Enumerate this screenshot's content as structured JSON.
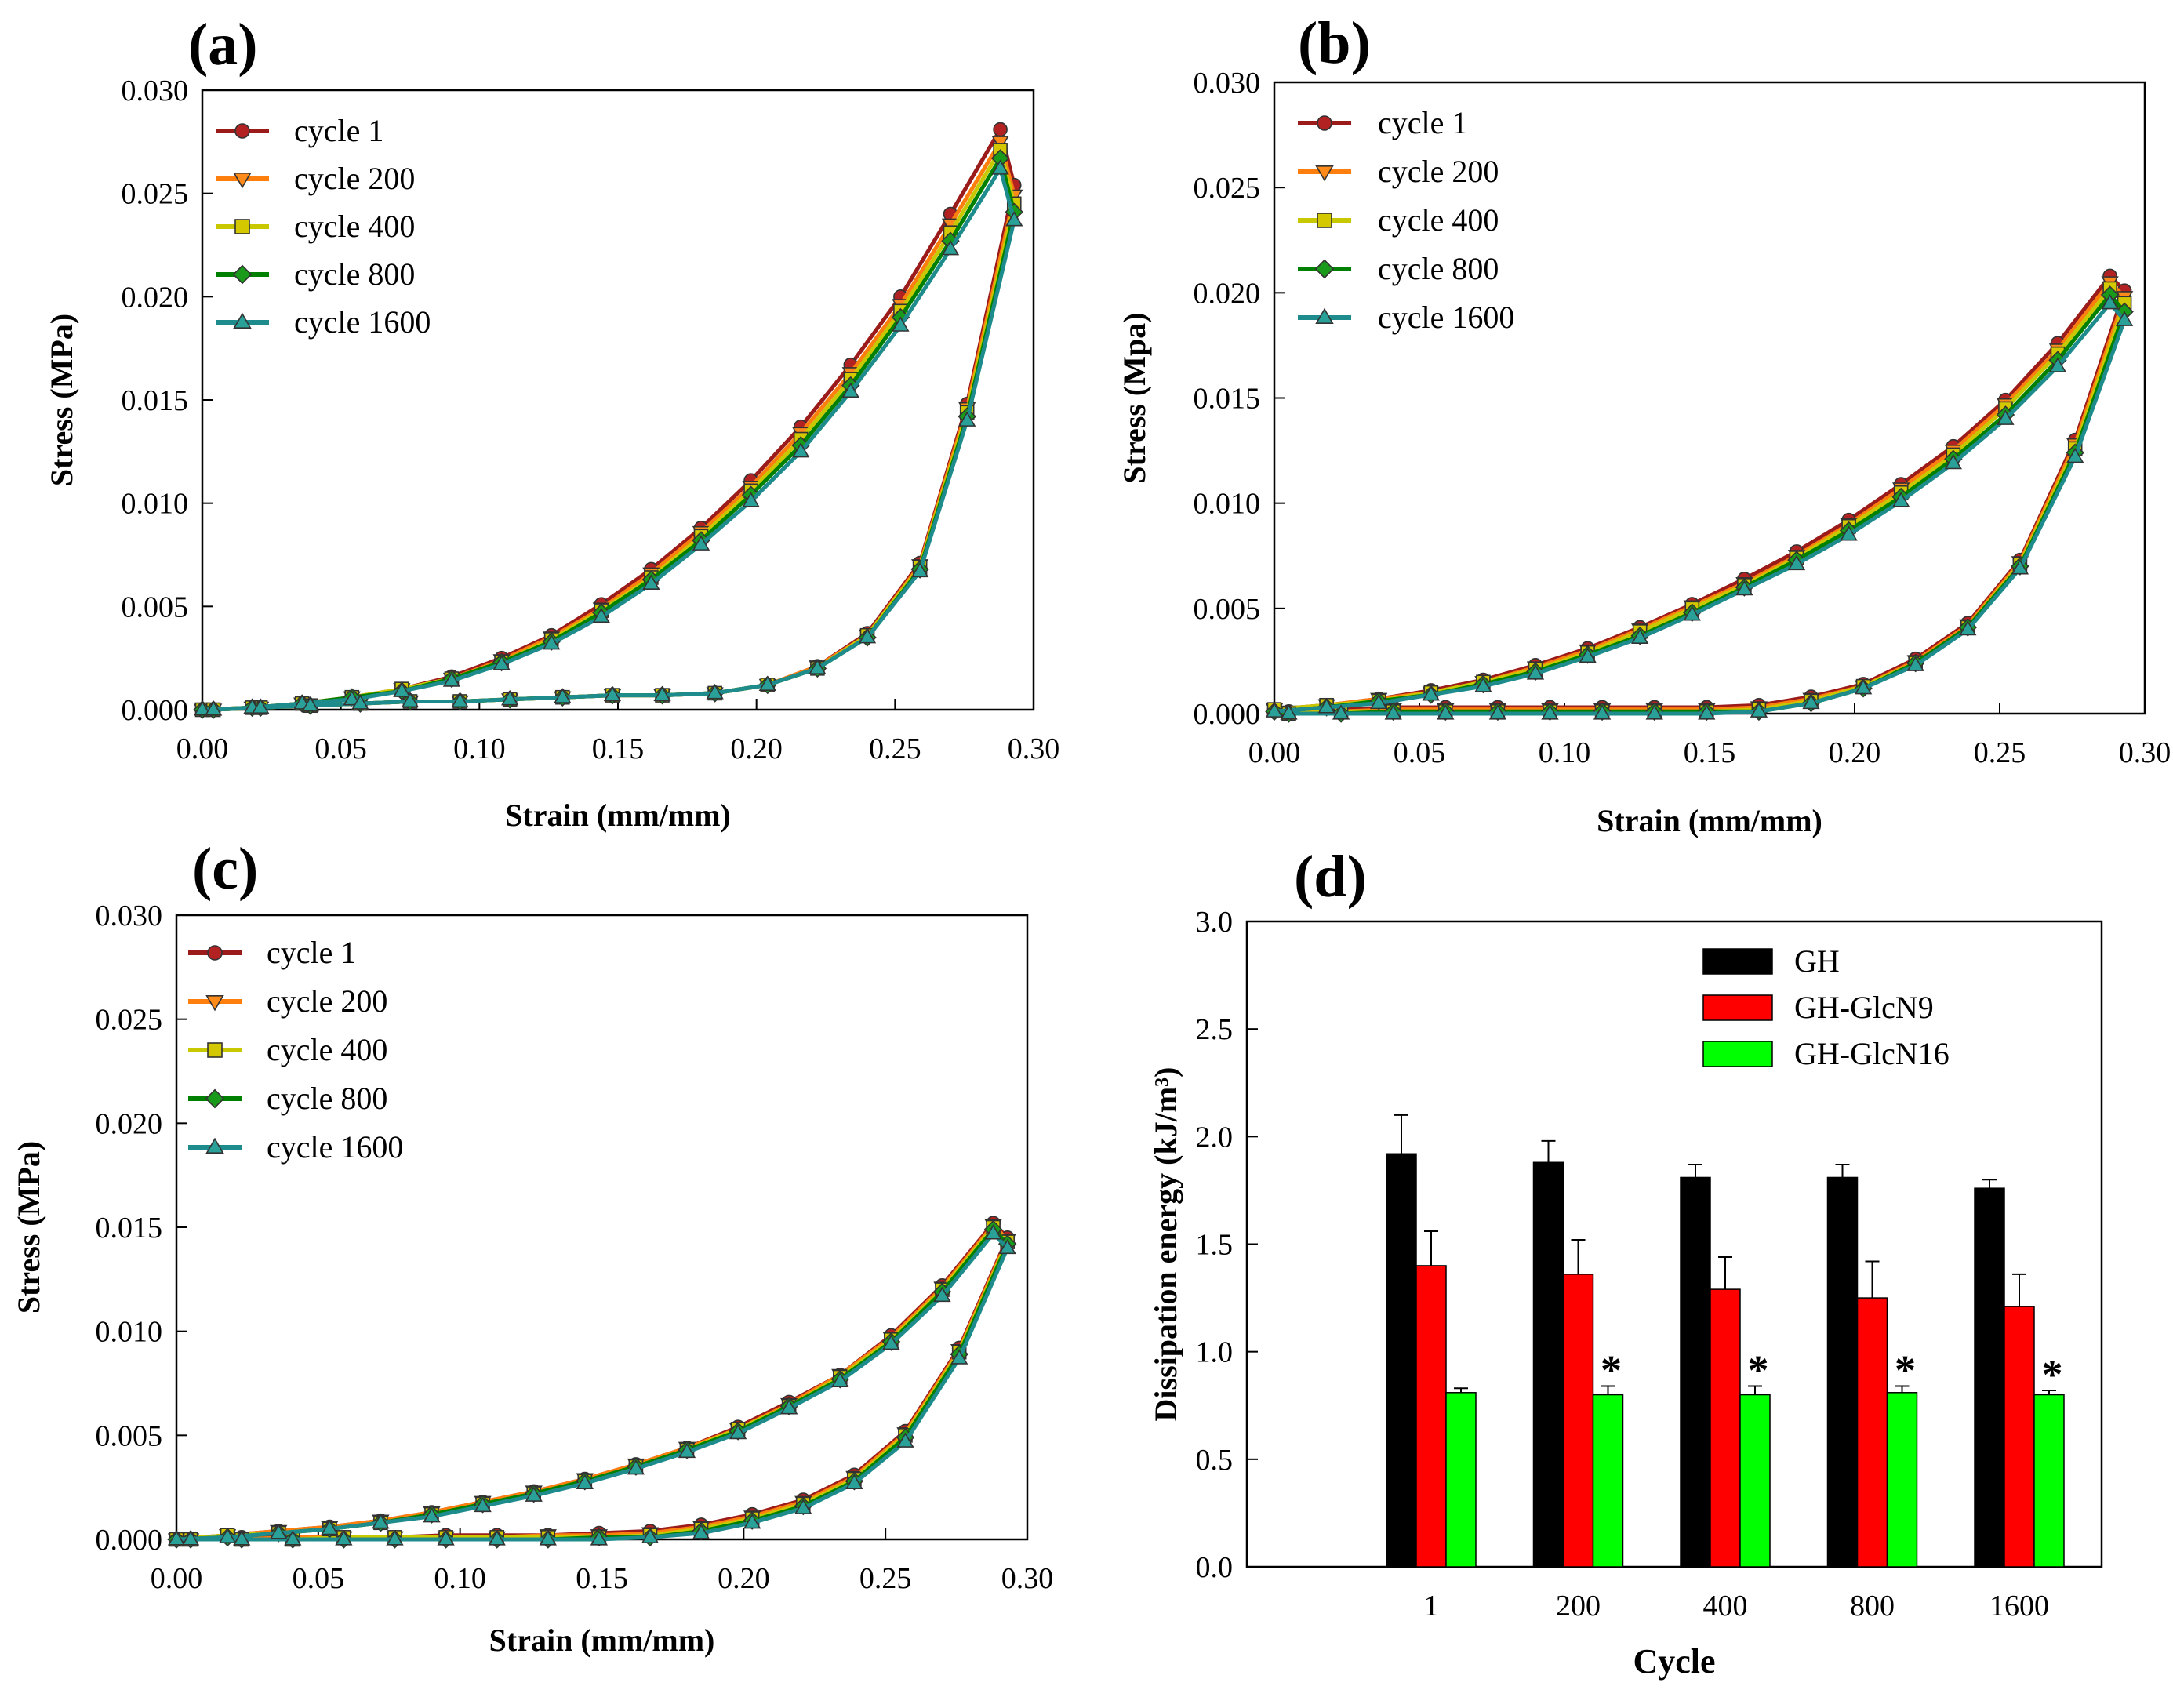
{
  "chart_data": [
    {
      "panel": "(a)",
      "type": "line",
      "xlabel": "Strain (mm/mm)",
      "ylabel": "Stress (MPa)",
      "xlim": [
        0.0,
        0.3
      ],
      "ylim": [
        0.0,
        0.03
      ],
      "xticks": [
        "0.00",
        "0.05",
        "0.10",
        "0.15",
        "0.20",
        "0.25",
        "0.30"
      ],
      "yticks": [
        "0.000",
        "0.005",
        "0.010",
        "0.015",
        "0.020",
        "0.025",
        "0.030"
      ],
      "xtick_values": [
        0,
        0.05,
        0.1,
        0.15,
        0.2,
        0.25,
        0.3
      ],
      "ytick_values": [
        0,
        0.005,
        0.01,
        0.015,
        0.02,
        0.025,
        0.03
      ],
      "loading_x": [
        0,
        0.018,
        0.036,
        0.054,
        0.072,
        0.09,
        0.108,
        0.126,
        0.144,
        0.162,
        0.18,
        0.198,
        0.216,
        0.234,
        0.252,
        0.27,
        0.288
      ],
      "unloading_x": [
        0.293,
        0.276,
        0.259,
        0.24,
        0.222,
        0.204,
        0.185,
        0.166,
        0.148,
        0.13,
        0.111,
        0.093,
        0.075,
        0.057,
        0.039,
        0.021,
        0.004
      ],
      "legend_position": "top-left",
      "series": [
        {
          "name": "cycle 1",
          "color": "#9b1b1b",
          "marker": "circle",
          "marker_fill": "#b22222",
          "loading": [
            0.0,
            0.0001,
            0.0003,
            0.0006,
            0.001,
            0.0016,
            0.0025,
            0.0036,
            0.0051,
            0.0068,
            0.0088,
            0.0111,
            0.0137,
            0.0167,
            0.02,
            0.024,
            0.0281
          ],
          "unloading": [
            0.0254,
            0.0148,
            0.0071,
            0.0037,
            0.0021,
            0.0012,
            0.0008,
            0.0007,
            0.0007,
            0.0006,
            0.0005,
            0.0004,
            0.0004,
            0.0003,
            0.0002,
            0.0001,
            0.0
          ]
        },
        {
          "name": "cycle 200",
          "color": "#ff7f0e",
          "marker": "triangle-down",
          "marker_fill": "#ff8c1a",
          "loading": [
            0.0,
            0.0001,
            0.0003,
            0.0006,
            0.001,
            0.0015,
            0.0024,
            0.0035,
            0.0049,
            0.0066,
            0.0086,
            0.0108,
            0.0134,
            0.0163,
            0.0196,
            0.0235,
            0.0275
          ],
          "unloading": [
            0.0249,
            0.0146,
            0.007,
            0.0036,
            0.0021,
            0.0012,
            0.0008,
            0.0007,
            0.0007,
            0.0006,
            0.0005,
            0.0004,
            0.0004,
            0.0003,
            0.0002,
            0.0001,
            0.0
          ]
        },
        {
          "name": "cycle 400",
          "color": "#c8c800",
          "marker": "square",
          "marker_fill": "#d4c800",
          "loading": [
            0.0,
            0.0001,
            0.0003,
            0.0006,
            0.001,
            0.0015,
            0.0023,
            0.0034,
            0.0048,
            0.0064,
            0.0084,
            0.0106,
            0.0131,
            0.016,
            0.0193,
            0.0231,
            0.0271
          ],
          "unloading": [
            0.0245,
            0.0144,
            0.0069,
            0.0036,
            0.002,
            0.0012,
            0.0008,
            0.0007,
            0.0007,
            0.0006,
            0.0005,
            0.0004,
            0.0004,
            0.0003,
            0.0002,
            0.0001,
            0.0
          ]
        },
        {
          "name": "cycle 800",
          "color": "#008000",
          "marker": "diamond",
          "marker_fill": "#1a9a1a",
          "loading": [
            0.0,
            0.0001,
            0.0003,
            0.0006,
            0.0009,
            0.0015,
            0.0023,
            0.0033,
            0.0047,
            0.0063,
            0.0082,
            0.0104,
            0.0128,
            0.0157,
            0.019,
            0.0227,
            0.0267
          ],
          "unloading": [
            0.0241,
            0.0142,
            0.0068,
            0.0035,
            0.002,
            0.0012,
            0.0008,
            0.0007,
            0.0007,
            0.0006,
            0.0005,
            0.0004,
            0.0004,
            0.0003,
            0.0002,
            0.0001,
            0.0
          ]
        },
        {
          "name": "cycle 1600",
          "color": "#1e8c8c",
          "marker": "triangle-up",
          "marker_fill": "#2aa198",
          "loading": [
            0.0,
            0.0001,
            0.0003,
            0.0005,
            0.0009,
            0.0014,
            0.0022,
            0.0032,
            0.0045,
            0.0061,
            0.008,
            0.0101,
            0.0125,
            0.0154,
            0.0186,
            0.0223,
            0.0262
          ],
          "unloading": [
            0.0237,
            0.014,
            0.0067,
            0.0035,
            0.002,
            0.0012,
            0.0008,
            0.0007,
            0.0007,
            0.0006,
            0.0005,
            0.0004,
            0.0004,
            0.0003,
            0.0002,
            0.0001,
            0.0
          ]
        }
      ]
    },
    {
      "panel": "(b)",
      "type": "line",
      "xlabel": "Strain (mm/mm)",
      "ylabel": "Stress (Mpa)",
      "xlim": [
        0.0,
        0.3
      ],
      "ylim": [
        0.0,
        0.03
      ],
      "xticks": [
        "0.00",
        "0.05",
        "0.10",
        "0.15",
        "0.20",
        "0.25",
        "0.30"
      ],
      "yticks": [
        "0.000",
        "0.005",
        "0.010",
        "0.015",
        "0.020",
        "0.025",
        "0.030"
      ],
      "xtick_values": [
        0,
        0.05,
        0.1,
        0.15,
        0.2,
        0.25,
        0.3
      ],
      "ytick_values": [
        0,
        0.005,
        0.01,
        0.015,
        0.02,
        0.025,
        0.03
      ],
      "loading_x": [
        0,
        0.018,
        0.036,
        0.054,
        0.072,
        0.09,
        0.108,
        0.126,
        0.144,
        0.162,
        0.18,
        0.198,
        0.216,
        0.234,
        0.252,
        0.27,
        0.288
      ],
      "unloading_x": [
        0.293,
        0.276,
        0.257,
        0.239,
        0.221,
        0.203,
        0.185,
        0.167,
        0.149,
        0.131,
        0.113,
        0.095,
        0.077,
        0.059,
        0.041,
        0.023,
        0.005
      ],
      "legend_position": "top-left",
      "series": [
        {
          "name": "cycle 1",
          "color": "#9b1b1b",
          "marker": "circle",
          "marker_fill": "#b22222",
          "loading": [
            0.0002,
            0.0004,
            0.0007,
            0.0011,
            0.0016,
            0.0023,
            0.0031,
            0.0041,
            0.0052,
            0.0064,
            0.0077,
            0.0092,
            0.0109,
            0.0127,
            0.0149,
            0.0176,
            0.0208
          ],
          "unloading": [
            0.0201,
            0.013,
            0.0073,
            0.0043,
            0.0026,
            0.0014,
            0.0008,
            0.0004,
            0.0003,
            0.0003,
            0.0003,
            0.0003,
            0.0003,
            0.0003,
            0.0003,
            0.0002,
            0.0001
          ]
        },
        {
          "name": "cycle 200",
          "color": "#ff7f0e",
          "marker": "triangle-down",
          "marker_fill": "#ff8c1a",
          "loading": [
            0.0002,
            0.0004,
            0.0007,
            0.001,
            0.0015,
            0.0022,
            0.003,
            0.004,
            0.0051,
            0.0062,
            0.0075,
            0.009,
            0.0107,
            0.0125,
            0.0147,
            0.0173,
            0.0205
          ],
          "unloading": [
            0.0198,
            0.0128,
            0.0072,
            0.0042,
            0.0025,
            0.0013,
            0.0007,
            0.0003,
            0.0002,
            0.0002,
            0.0002,
            0.0002,
            0.0002,
            0.0002,
            0.0002,
            0.0001,
            0.0001
          ]
        },
        {
          "name": "cycle 400",
          "color": "#c8c800",
          "marker": "square",
          "marker_fill": "#d4c800",
          "loading": [
            0.0002,
            0.0004,
            0.0006,
            0.001,
            0.0015,
            0.0021,
            0.0029,
            0.0039,
            0.005,
            0.0061,
            0.0074,
            0.0089,
            0.0105,
            0.0123,
            0.0145,
            0.0171,
            0.0202
          ],
          "unloading": [
            0.0195,
            0.0126,
            0.0071,
            0.0041,
            0.0024,
            0.0013,
            0.0006,
            0.0002,
            0.0001,
            0.0001,
            0.0001,
            0.0001,
            0.0001,
            0.0001,
            0.0001,
            0.0001,
            0.0
          ]
        },
        {
          "name": "cycle 800",
          "color": "#008000",
          "marker": "diamond",
          "marker_fill": "#1a9a1a",
          "loading": [
            0.0001,
            0.0003,
            0.0006,
            0.0009,
            0.0014,
            0.002,
            0.0028,
            0.0037,
            0.0048,
            0.006,
            0.0073,
            0.0087,
            0.0103,
            0.0121,
            0.0142,
            0.0168,
            0.0199
          ],
          "unloading": [
            0.0191,
            0.0124,
            0.007,
            0.0041,
            0.0024,
            0.0012,
            0.0005,
            0.0001,
            0.0001,
            0.0001,
            0.0001,
            0.0001,
            0.0001,
            0.0001,
            0.0001,
            0.0,
            0.0
          ]
        },
        {
          "name": "cycle 1600",
          "color": "#1e8c8c",
          "marker": "triangle-up",
          "marker_fill": "#2aa198",
          "loading": [
            0.0001,
            0.0003,
            0.0005,
            0.0009,
            0.0013,
            0.0019,
            0.0027,
            0.0036,
            0.0047,
            0.0059,
            0.0071,
            0.0085,
            0.0101,
            0.0119,
            0.014,
            0.0165,
            0.0195
          ],
          "unloading": [
            0.0187,
            0.0122,
            0.0069,
            0.004,
            0.0023,
            0.0012,
            0.0005,
            0.0001,
            0.0,
            0.0,
            0.0,
            0.0,
            0.0,
            0.0,
            0.0,
            0.0,
            0.0
          ]
        }
      ]
    },
    {
      "panel": "(c)",
      "type": "line",
      "xlabel": "Strain (mm/mm)",
      "ylabel": "Stress (MPa)",
      "xlim": [
        0.0,
        0.3
      ],
      "ylim": [
        0.0,
        0.03
      ],
      "xticks": [
        "0.00",
        "0.05",
        "0.10",
        "0.15",
        "0.20",
        "0.25",
        "0.30"
      ],
      "yticks": [
        "0.000",
        "0.005",
        "0.010",
        "0.015",
        "0.020",
        "0.025",
        "0.030"
      ],
      "xtick_values": [
        0,
        0.05,
        0.1,
        0.15,
        0.2,
        0.25,
        0.3
      ],
      "ytick_values": [
        0,
        0.005,
        0.01,
        0.015,
        0.02,
        0.025,
        0.03
      ],
      "loading_x": [
        0,
        0.018,
        0.036,
        0.054,
        0.072,
        0.09,
        0.108,
        0.126,
        0.144,
        0.162,
        0.18,
        0.198,
        0.216,
        0.234,
        0.252,
        0.27,
        0.288
      ],
      "unloading_x": [
        0.293,
        0.276,
        0.257,
        0.239,
        0.221,
        0.203,
        0.185,
        0.167,
        0.149,
        0.131,
        0.113,
        0.095,
        0.077,
        0.059,
        0.041,
        0.023,
        0.005
      ],
      "legend_position": "top-left",
      "series": [
        {
          "name": "cycle 1",
          "color": "#9b1b1b",
          "marker": "circle",
          "marker_fill": "#b22222",
          "loading": [
            0.0,
            0.0002,
            0.0004,
            0.0006,
            0.0009,
            0.0013,
            0.0018,
            0.0023,
            0.0029,
            0.0036,
            0.0044,
            0.0054,
            0.0066,
            0.0079,
            0.0098,
            0.0122,
            0.0152
          ],
          "unloading": [
            0.0145,
            0.0092,
            0.0052,
            0.0031,
            0.0019,
            0.0012,
            0.0007,
            0.0004,
            0.0003,
            0.0002,
            0.0002,
            0.0002,
            0.0001,
            0.0001,
            0.0001,
            0.0001,
            0.0
          ]
        },
        {
          "name": "cycle 200",
          "color": "#ff7f0e",
          "marker": "triangle-down",
          "marker_fill": "#ff8c1a",
          "loading": [
            0.0,
            0.0002,
            0.0004,
            0.0006,
            0.0009,
            0.0013,
            0.0018,
            0.0023,
            0.0029,
            0.0036,
            0.0044,
            0.0053,
            0.0065,
            0.0079,
            0.0097,
            0.0121,
            0.0151
          ],
          "unloading": [
            0.0144,
            0.0091,
            0.0051,
            0.003,
            0.0018,
            0.0011,
            0.0006,
            0.0003,
            0.0002,
            0.0002,
            0.0001,
            0.0001,
            0.0001,
            0.0001,
            0.0001,
            0.0,
            0.0
          ]
        },
        {
          "name": "cycle 400",
          "color": "#c8c800",
          "marker": "square",
          "marker_fill": "#d4c800",
          "loading": [
            0.0,
            0.0002,
            0.0003,
            0.0005,
            0.0008,
            0.0012,
            0.0017,
            0.0022,
            0.0028,
            0.0035,
            0.0043,
            0.0053,
            0.0064,
            0.0078,
            0.0096,
            0.012,
            0.015
          ],
          "unloading": [
            0.0143,
            0.009,
            0.005,
            0.0029,
            0.0017,
            0.001,
            0.0005,
            0.0002,
            0.0001,
            0.0001,
            0.0001,
            0.0001,
            0.0001,
            0.0001,
            0.0,
            0.0,
            0.0
          ]
        },
        {
          "name": "cycle 800",
          "color": "#008000",
          "marker": "diamond",
          "marker_fill": "#1a9a1a",
          "loading": [
            0.0,
            0.0001,
            0.0003,
            0.0005,
            0.0008,
            0.0012,
            0.0017,
            0.0022,
            0.0028,
            0.0035,
            0.0043,
            0.0052,
            0.0064,
            0.0077,
            0.0095,
            0.0119,
            0.0149
          ],
          "unloading": [
            0.0142,
            0.0089,
            0.0049,
            0.0028,
            0.0016,
            0.0009,
            0.0004,
            0.0001,
            0.0001,
            0.0,
            0.0,
            0.0,
            0.0,
            0.0,
            0.0,
            0.0,
            0.0
          ]
        },
        {
          "name": "cycle 1600",
          "color": "#1e8c8c",
          "marker": "triangle-up",
          "marker_fill": "#2aa198",
          "loading": [
            0.0,
            0.0001,
            0.0003,
            0.0005,
            0.0008,
            0.0011,
            0.0016,
            0.0021,
            0.0027,
            0.0034,
            0.0042,
            0.0051,
            0.0063,
            0.0076,
            0.0094,
            0.0117,
            0.0147
          ],
          "unloading": [
            0.014,
            0.0087,
            0.0047,
            0.0027,
            0.0015,
            0.0008,
            0.0003,
            0.0001,
            0.0,
            0.0,
            0.0,
            0.0,
            0.0,
            0.0,
            0.0,
            0.0,
            0.0
          ]
        }
      ]
    },
    {
      "panel": "(d)",
      "type": "bar",
      "xlabel": "Cycle",
      "ylabel": "Dissipation energy (kJ/m³)",
      "ylim": [
        0.0,
        3.0
      ],
      "yticks": [
        "0.0",
        "0.5",
        "1.0",
        "1.5",
        "2.0",
        "2.5",
        "3.0"
      ],
      "ytick_values": [
        0,
        0.5,
        1.0,
        1.5,
        2.0,
        2.5,
        3.0
      ],
      "categories": [
        "1",
        "200",
        "400",
        "800",
        "1600"
      ],
      "legend_position": "top-right",
      "series": [
        {
          "name": "GH",
          "color": "#000000",
          "values": [
            1.92,
            1.88,
            1.81,
            1.81,
            1.76
          ],
          "errors": [
            0.18,
            0.1,
            0.06,
            0.06,
            0.04
          ]
        },
        {
          "name": "GH-GlcN9",
          "color": "#ff0000",
          "values": [
            1.4,
            1.36,
            1.29,
            1.25,
            1.21
          ],
          "errors": [
            0.16,
            0.16,
            0.15,
            0.17,
            0.15
          ]
        },
        {
          "name": "GH-GlcN16",
          "color": "#00ff00",
          "values": [
            0.81,
            0.8,
            0.8,
            0.81,
            0.8
          ],
          "errors": [
            0.02,
            0.04,
            0.04,
            0.03,
            0.02
          ]
        }
      ],
      "significance": [
        "",
        "*",
        "*",
        "*",
        "*"
      ]
    }
  ]
}
